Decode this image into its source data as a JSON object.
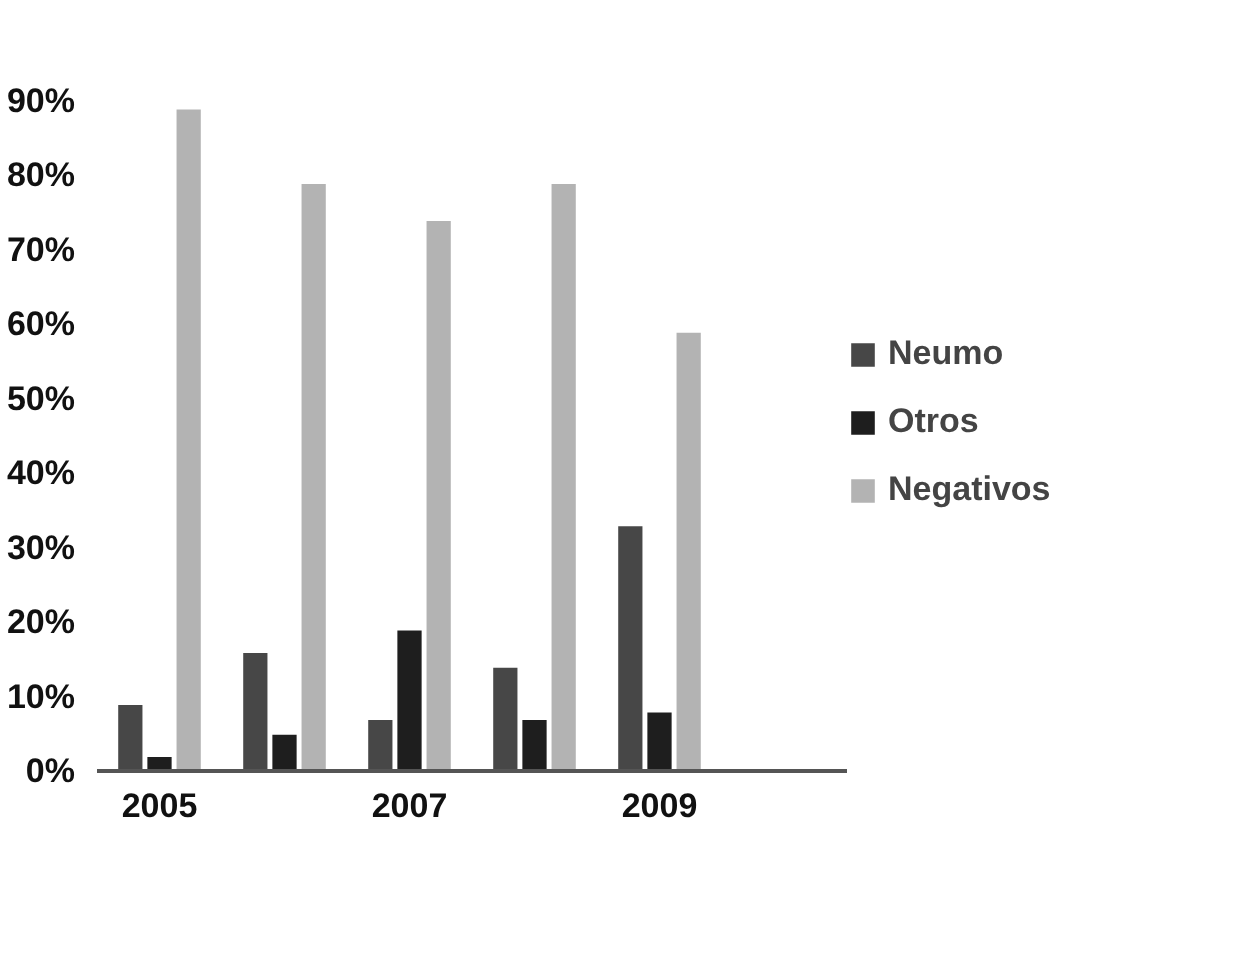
{
  "chart_data": {
    "type": "bar",
    "categories": [
      "2005",
      null,
      "2007",
      null,
      "2009",
      null
    ],
    "series": [
      {
        "name": "Neumo",
        "color": "#474747",
        "values": [
          9,
          16,
          7,
          14,
          33,
          null
        ]
      },
      {
        "name": "Otros",
        "color": "#1e1e1e",
        "values": [
          2,
          5,
          19,
          7,
          8,
          null
        ]
      },
      {
        "name": "Negativos",
        "color": "#b3b3b3",
        "values": [
          89,
          79,
          74,
          79,
          59,
          null
        ]
      }
    ],
    "ylim": [
      0,
      90
    ],
    "yticks": [
      {
        "value": 0,
        "label": "0%"
      },
      {
        "value": 10,
        "label": "10%"
      },
      {
        "value": 20,
        "label": "20%"
      },
      {
        "value": 30,
        "label": "30%"
      },
      {
        "value": 40,
        "label": "40%"
      },
      {
        "value": 50,
        "label": "50%"
      },
      {
        "value": 60,
        "label": "60%"
      },
      {
        "value": 70,
        "label": "70%"
      },
      {
        "value": 80,
        "label": "80%"
      },
      {
        "value": 90,
        "label": "90%"
      }
    ],
    "legend": "right"
  }
}
